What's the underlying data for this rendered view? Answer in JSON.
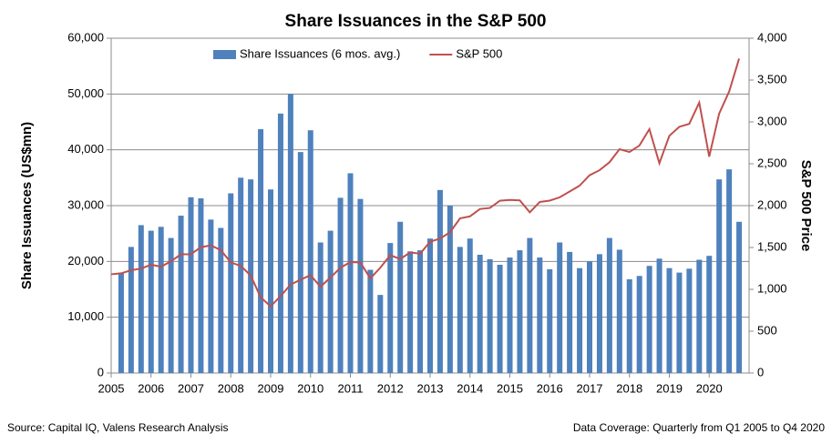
{
  "chart_data": {
    "type": "combo",
    "title": "Share Issuances in the S&P 500",
    "y_label": "Share Issuances (US$mn)",
    "y2_label": "S&P 500 Price",
    "source": "Source: Capital IQ, Valens Research Analysis",
    "note": "Data Coverage: Quarterly from Q1 2005  to Q4 2020",
    "legend": "top",
    "grid": true,
    "xlim": [
      2005,
      2021
    ],
    "xticks": [
      2005,
      2006,
      2007,
      2008,
      2009,
      2010,
      2011,
      2012,
      2013,
      2014,
      2015,
      2016,
      2017,
      2018,
      2019,
      2020
    ],
    "ylim": [
      0,
      60000
    ],
    "yticks": [
      0,
      {
        "value": 10000,
        "label": "10,000"
      },
      {
        "value": 20000,
        "label": "20,000"
      },
      {
        "value": 30000,
        "label": "30,000"
      },
      {
        "value": 40000,
        "label": "40,000"
      },
      {
        "value": 50000,
        "label": "50,000"
      },
      {
        "value": 60000,
        "label": "60,000"
      }
    ],
    "y2lim": [
      0,
      4000
    ],
    "y2ticks": [
      0,
      500,
      {
        "value": 1000,
        "label": "1,000"
      },
      {
        "value": 1500,
        "label": "1,500"
      },
      {
        "value": 2000,
        "label": "2,000"
      },
      {
        "value": 2500,
        "label": "2,500"
      },
      {
        "value": 3000,
        "label": "3,000"
      },
      {
        "value": 3500,
        "label": "3,500"
      },
      {
        "value": 4000,
        "label": "4,000"
      }
    ],
    "series": [
      {
        "name": "Share Issuances (6 mos. avg.)",
        "type": "bar",
        "color": "#4f81bd",
        "x": [
          2005.25,
          2005.5,
          2005.75,
          2006,
          2006.25,
          2006.5,
          2006.75,
          2007,
          2007.25,
          2007.5,
          2007.75,
          2008,
          2008.25,
          2008.5,
          2008.75,
          2009,
          2009.25,
          2009.5,
          2009.75,
          2010,
          2010.25,
          2010.5,
          2010.75,
          2011,
          2011.25,
          2011.5,
          2011.75,
          2012,
          2012.25,
          2012.5,
          2012.75,
          2013,
          2013.25,
          2013.5,
          2013.75,
          2014,
          2014.25,
          2014.5,
          2014.75,
          2015,
          2015.25,
          2015.5,
          2015.75,
          2016,
          2016.25,
          2016.5,
          2016.75,
          2017,
          2017.25,
          2017.5,
          2017.75,
          2018,
          2018.25,
          2018.5,
          2018.75,
          2019,
          2019.25,
          2019.5,
          2019.75,
          2020,
          2020.25,
          2020.5,
          2020.75
        ],
        "values": [
          18000,
          22600,
          26500,
          25500,
          26200,
          24200,
          28200,
          31500,
          31300,
          27500,
          26000,
          32200,
          35000,
          34700,
          43700,
          32900,
          46500,
          50000,
          39600,
          43500,
          23400,
          25500,
          31400,
          35800,
          31200,
          18500,
          14000,
          23300,
          27100,
          21800,
          22000,
          24100,
          32800,
          30000,
          22600,
          24100,
          21200,
          20400,
          19400,
          20700,
          22000,
          24200,
          20700,
          18600,
          23400,
          21700,
          18800,
          20000,
          21300,
          24200,
          22100,
          16800,
          17400,
          19200,
          20500,
          18800,
          18000,
          18700,
          20300,
          21000,
          34700,
          36500,
          27100
        ]
      },
      {
        "name": "S&P 500",
        "type": "line",
        "axis": "y2",
        "color": "#c0504d",
        "x": [
          2005,
          2005.25,
          2005.5,
          2005.75,
          2006,
          2006.25,
          2006.5,
          2006.75,
          2007,
          2007.25,
          2007.5,
          2007.75,
          2008,
          2008.25,
          2008.5,
          2008.75,
          2009,
          2009.25,
          2009.5,
          2009.75,
          2010,
          2010.25,
          2010.5,
          2010.75,
          2011,
          2011.25,
          2011.5,
          2011.75,
          2012,
          2012.25,
          2012.5,
          2012.75,
          2013,
          2013.25,
          2013.5,
          2013.75,
          2014,
          2014.25,
          2014.5,
          2014.75,
          2015,
          2015.25,
          2015.5,
          2015.75,
          2016,
          2016.25,
          2016.5,
          2016.75,
          2017,
          2017.25,
          2017.5,
          2017.75,
          2018,
          2018.25,
          2018.5,
          2018.75,
          2019,
          2019.25,
          2019.5,
          2019.75,
          2020,
          2020.25,
          2020.5,
          2020.75
        ],
        "values": [
          1180,
          1191,
          1228,
          1248,
          1294,
          1270,
          1335,
          1418,
          1420,
          1503,
          1526,
          1468,
          1322,
          1280,
          1166,
          903,
          797,
          919,
          1057,
          1115,
          1169,
          1031,
          1141,
          1258,
          1326,
          1321,
          1131,
          1258,
          1408,
          1362,
          1441,
          1426,
          1569,
          1606,
          1682,
          1848,
          1872,
          1960,
          1972,
          2059,
          2068,
          2063,
          1920,
          2044,
          2060,
          2099,
          2168,
          2239,
          2363,
          2423,
          2519,
          2674,
          2641,
          2718,
          2914,
          2507,
          2834,
          2942,
          2977,
          3231,
          2585,
          3100,
          3363,
          3756
        ]
      }
    ]
  }
}
